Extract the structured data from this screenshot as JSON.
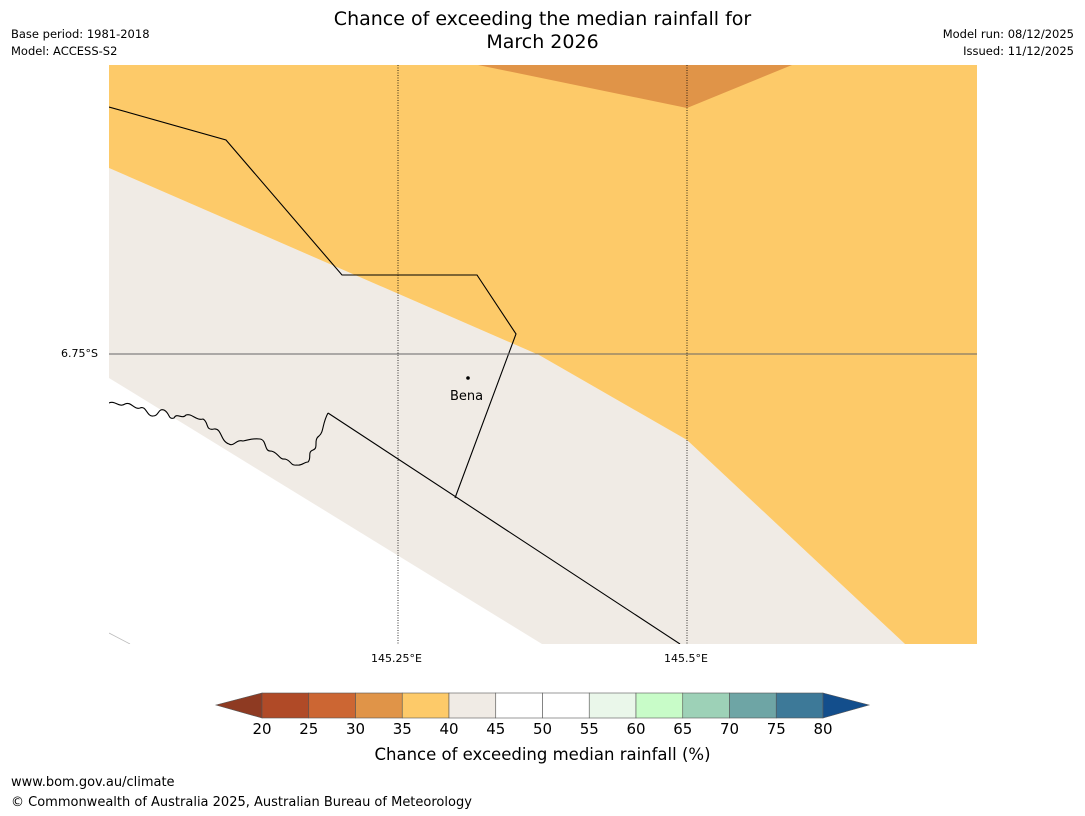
{
  "header": {
    "title_line1": "Chance of exceeding the median rainfall for",
    "title_line2": "March 2026",
    "base_period": "Base period: 1981-2018",
    "model": "Model: ACCESS-S2",
    "model_run": "Model run: 08/12/2025",
    "issued": "Issued: 11/12/2025"
  },
  "map": {
    "lat_label": "6.75°S",
    "lon_labels": [
      "145.25°E",
      "145.5°E"
    ],
    "place": {
      "name": "Bena"
    },
    "colors": {
      "band_35_40": "#fdca69",
      "band_30_35": "#e09448",
      "band_40_45": "#f0ebe5",
      "band_45_55": "#ffffff"
    }
  },
  "colorbar": {
    "title": "Chance of exceeding median rainfall (%)",
    "ticks": [
      "20",
      "25",
      "30",
      "35",
      "40",
      "45",
      "50",
      "55",
      "60",
      "65",
      "70",
      "75",
      "80"
    ],
    "low_extend_color": "#8e3a22",
    "high_extend_color": "#134e8c",
    "colors": [
      "#b04a27",
      "#cc6633",
      "#e09448",
      "#fdca69",
      "#f0ebe5",
      "#ffffff",
      "#ffffff",
      "#eaf7ea",
      "#c8fcc8",
      "#9dd1b7",
      "#6ea5a5",
      "#3d7998"
    ]
  },
  "footer": {
    "url": "www.bom.gov.au/climate",
    "copyright": "© Commonwealth of Australia 2025, Australian Bureau of Meteorology"
  }
}
